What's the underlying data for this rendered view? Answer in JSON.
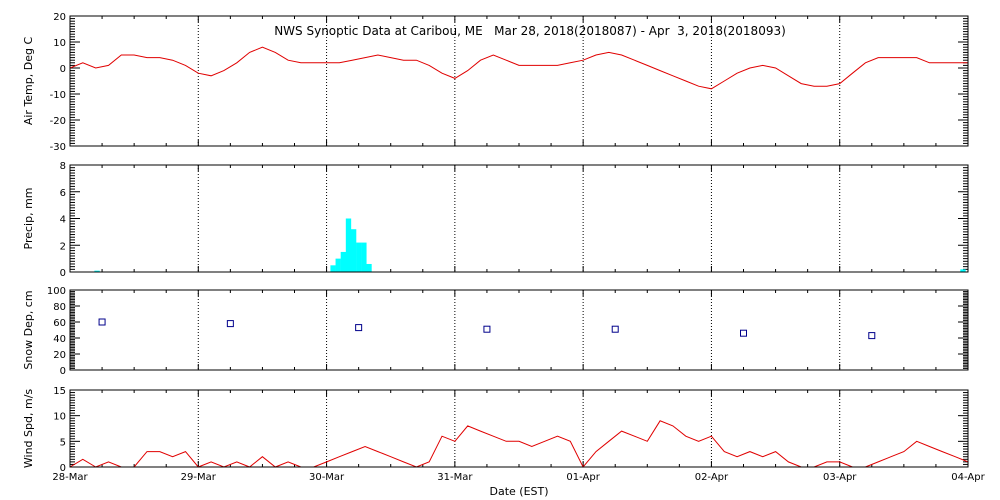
{
  "chart_data": {
    "type": "multi-panel",
    "title": "NWS Synoptic Data at Caribou, ME   Mar 28, 2018(2018087) - Apr  3, 2018(2018093)",
    "xlabel": "Date (EST)",
    "x_ticks": [
      "28-Mar",
      "29-Mar",
      "30-Mar",
      "31-Mar",
      "01-Apr",
      "02-Apr",
      "03-Apr",
      "04-Apr"
    ],
    "xlim": [
      0,
      7
    ],
    "colors": {
      "line": "#e00000",
      "bar": "#00ffff",
      "marker": "#00008b",
      "grid": "#000000"
    },
    "panels": [
      {
        "id": "temp",
        "type": "line",
        "ylabel": "Air Temp, Deg C",
        "ylim": [
          -30,
          20
        ],
        "yticks": [
          -30,
          -20,
          -10,
          0,
          10,
          20
        ],
        "x": [
          0,
          0.1,
          0.2,
          0.3,
          0.4,
          0.5,
          0.6,
          0.7,
          0.8,
          0.9,
          1.0,
          1.1,
          1.2,
          1.3,
          1.4,
          1.5,
          1.6,
          1.7,
          1.8,
          1.9,
          2.0,
          2.1,
          2.2,
          2.3,
          2.4,
          2.5,
          2.6,
          2.7,
          2.8,
          2.9,
          3.0,
          3.1,
          3.2,
          3.3,
          3.4,
          3.5,
          3.6,
          3.7,
          3.8,
          3.9,
          4.0,
          4.1,
          4.2,
          4.3,
          4.4,
          4.5,
          4.6,
          4.7,
          4.8,
          4.9,
          5.0,
          5.1,
          5.2,
          5.3,
          5.4,
          5.5,
          5.6,
          5.7,
          5.8,
          5.9,
          6.0,
          6.1,
          6.2,
          6.3,
          6.4,
          6.5,
          6.6,
          6.7,
          6.8,
          6.9,
          7.0
        ],
        "y": [
          0,
          2,
          0,
          1,
          5,
          5,
          4,
          4,
          3,
          1,
          -2,
          -3,
          -1,
          2,
          6,
          8,
          6,
          3,
          2,
          2,
          2,
          2,
          3,
          4,
          5,
          4,
          3,
          3,
          1,
          -2,
          -4,
          -1,
          3,
          5,
          3,
          1,
          1,
          1,
          1,
          2,
          3,
          5,
          6,
          5,
          3,
          1,
          -1,
          -3,
          -5,
          -7,
          -8,
          -5,
          -2,
          0,
          1,
          0,
          -3,
          -6,
          -7,
          -7,
          -6,
          -2,
          2,
          4,
          4,
          4,
          4,
          2,
          2,
          2,
          2
        ]
      },
      {
        "id": "precip",
        "type": "bar",
        "ylabel": "Precip, mm",
        "ylim": [
          0,
          8
        ],
        "yticks": [
          0,
          2,
          4,
          6,
          8
        ],
        "bar_width": 0.0417,
        "x": [
          0.19,
          2.03,
          2.07,
          2.11,
          2.15,
          2.19,
          2.23,
          2.27,
          2.31,
          6.94
        ],
        "values": [
          0.1,
          0.5,
          1.0,
          1.5,
          4.0,
          3.2,
          2.2,
          2.2,
          0.6,
          0.2
        ]
      },
      {
        "id": "snow",
        "type": "scatter",
        "ylabel": "Snow Dep, cm",
        "ylim": [
          0,
          100
        ],
        "yticks": [
          0,
          20,
          40,
          60,
          80,
          100
        ],
        "x": [
          0.25,
          1.25,
          2.25,
          3.25,
          4.25,
          5.25,
          6.25
        ],
        "y": [
          60,
          58,
          53,
          51,
          51,
          46,
          43
        ]
      },
      {
        "id": "wind",
        "type": "line",
        "ylabel": "Wind Spd, m/s",
        "ylim": [
          0,
          15
        ],
        "yticks": [
          0,
          5,
          10,
          15
        ],
        "x": [
          0,
          0.1,
          0.2,
          0.3,
          0.4,
          0.5,
          0.6,
          0.7,
          0.8,
          0.9,
          1.0,
          1.1,
          1.2,
          1.3,
          1.4,
          1.5,
          1.6,
          1.7,
          1.8,
          1.9,
          2.0,
          2.1,
          2.2,
          2.3,
          2.4,
          2.5,
          2.6,
          2.7,
          2.8,
          2.9,
          3.0,
          3.1,
          3.2,
          3.3,
          3.4,
          3.5,
          3.6,
          3.7,
          3.8,
          3.9,
          4.0,
          4.1,
          4.2,
          4.3,
          4.4,
          4.5,
          4.6,
          4.7,
          4.8,
          4.9,
          5.0,
          5.1,
          5.2,
          5.3,
          5.4,
          5.5,
          5.6,
          5.7,
          5.8,
          5.9,
          6.0,
          6.1,
          6.2,
          6.3,
          6.4,
          6.5,
          6.6,
          6.7,
          6.8,
          6.9,
          7.0
        ],
        "y": [
          0,
          1.5,
          0,
          1,
          0,
          0,
          3,
          3,
          2,
          3,
          0,
          1,
          0,
          1,
          0,
          2,
          0,
          1,
          0,
          0,
          1,
          2,
          3,
          4,
          3,
          2,
          1,
          0,
          1,
          6,
          5,
          8,
          7,
          6,
          5,
          5,
          4,
          5,
          6,
          5,
          0,
          3,
          5,
          7,
          6,
          5,
          9,
          8,
          6,
          5,
          6,
          3,
          2,
          3,
          2,
          3,
          1,
          0,
          0,
          1,
          1,
          0,
          0,
          1,
          2,
          3,
          5,
          4,
          3,
          2,
          1
        ]
      }
    ]
  }
}
